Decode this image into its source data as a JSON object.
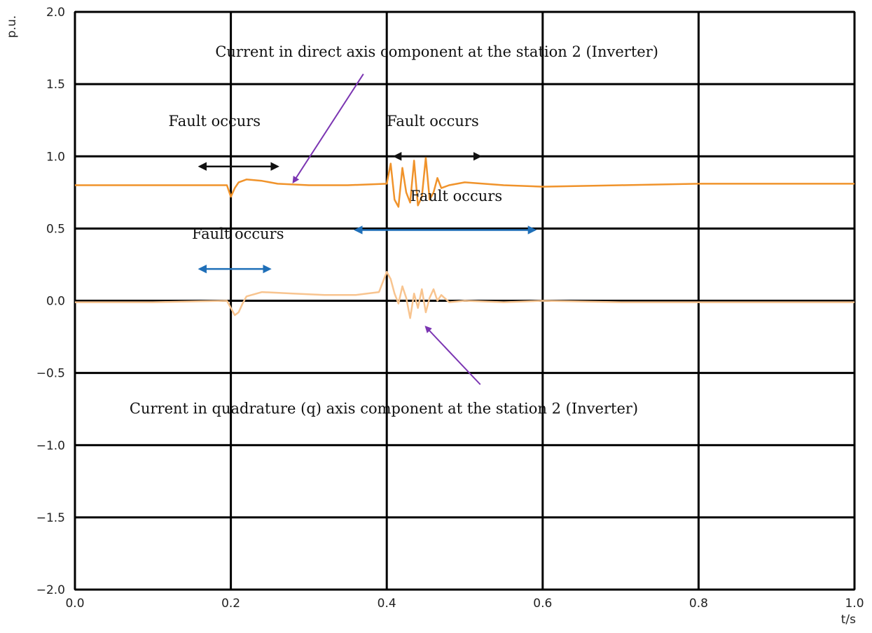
{
  "chart_data": {
    "type": "line",
    "title": "",
    "xlabel": "t/s",
    "ylabel": "p.u.",
    "xlim": [
      0.0,
      1.0
    ],
    "ylim": [
      -2.0,
      2.0
    ],
    "grid": true,
    "x_ticks": [
      "0.0",
      "0.2",
      "0.4",
      "0.6",
      "0.8",
      "1.0"
    ],
    "y_ticks": [
      "2.0",
      "1.5",
      "1.0",
      "0.5",
      "0.0",
      "−0.5",
      "−1.0",
      "−1.5",
      "−2.0"
    ],
    "series": [
      {
        "color": "#f0932b",
        "x": [
          0.0,
          0.1,
          0.195,
          0.2,
          0.205,
          0.21,
          0.22,
          0.24,
          0.26,
          0.3,
          0.35,
          0.4,
          0.405,
          0.41,
          0.415,
          0.42,
          0.425,
          0.43,
          0.435,
          0.44,
          0.445,
          0.45,
          0.455,
          0.46,
          0.465,
          0.47,
          0.48,
          0.5,
          0.55,
          0.6,
          0.7,
          0.8,
          0.9,
          1.0
        ],
        "y": [
          0.8,
          0.8,
          0.8,
          0.72,
          0.78,
          0.82,
          0.84,
          0.83,
          0.81,
          0.8,
          0.8,
          0.81,
          0.95,
          0.7,
          0.65,
          0.92,
          0.75,
          0.68,
          0.97,
          0.66,
          0.72,
          0.99,
          0.7,
          0.75,
          0.85,
          0.78,
          0.8,
          0.82,
          0.8,
          0.79,
          0.8,
          0.81,
          0.81,
          0.81
        ]
      },
      {
        "color": "#f8c48f",
        "x": [
          0.0,
          0.1,
          0.195,
          0.2,
          0.205,
          0.21,
          0.215,
          0.22,
          0.24,
          0.28,
          0.32,
          0.36,
          0.39,
          0.4,
          0.405,
          0.41,
          0.415,
          0.42,
          0.425,
          0.43,
          0.435,
          0.44,
          0.445,
          0.45,
          0.455,
          0.46,
          0.465,
          0.47,
          0.48,
          0.5,
          0.55,
          0.6,
          0.7,
          0.8,
          0.9,
          1.0
        ],
        "y": [
          -0.01,
          -0.01,
          0.0,
          -0.05,
          -0.1,
          -0.08,
          -0.02,
          0.03,
          0.06,
          0.05,
          0.04,
          0.04,
          0.06,
          0.2,
          0.15,
          0.05,
          -0.02,
          0.1,
          0.02,
          -0.12,
          0.05,
          -0.05,
          0.08,
          -0.08,
          0.02,
          0.08,
          0.0,
          0.04,
          -0.01,
          0.0,
          -0.01,
          0.0,
          -0.01,
          -0.01,
          -0.01,
          -0.01
        ]
      }
    ],
    "annotations": [
      {
        "text": "Current in direct axis component  at the station 2 (Inverter)",
        "x": 0.18,
        "y": 1.69,
        "arrow_from": [
          0.37,
          1.57
        ],
        "arrow_to": [
          0.28,
          0.82
        ],
        "arrow_color": "#7b35b2"
      },
      {
        "text": "Fault occurs",
        "x": 0.12,
        "y": 1.21,
        "arrow_from": [
          0.16,
          0.93
        ],
        "arrow_to": [
          0.26,
          0.93
        ],
        "arrow_color": "#111111"
      },
      {
        "text": "Fault occurs",
        "x": 0.4,
        "y": 1.21,
        "arrow_from": [
          0.41,
          1.0
        ],
        "arrow_to": [
          0.52,
          1.0
        ],
        "arrow_color": "#111111"
      },
      {
        "text": "Fault occurs",
        "x": 0.15,
        "y": 0.43,
        "arrow_from": [
          0.16,
          0.22
        ],
        "arrow_to": [
          0.25,
          0.22
        ],
        "arrow_color": "#1f6fb8"
      },
      {
        "text": "Fault occurs",
        "x": 0.43,
        "y": 0.69,
        "arrow_from": [
          0.36,
          0.49
        ],
        "arrow_to": [
          0.59,
          0.49
        ],
        "arrow_color": "#1f6fb8"
      },
      {
        "text": "Current in quadrature (q) axis component  at the station 2 (Inverter)",
        "x": 0.07,
        "y": -0.78,
        "arrow_from": [
          0.52,
          -0.58
        ],
        "arrow_to": [
          0.45,
          -0.18
        ],
        "arrow_color": "#7b35b2"
      }
    ]
  }
}
